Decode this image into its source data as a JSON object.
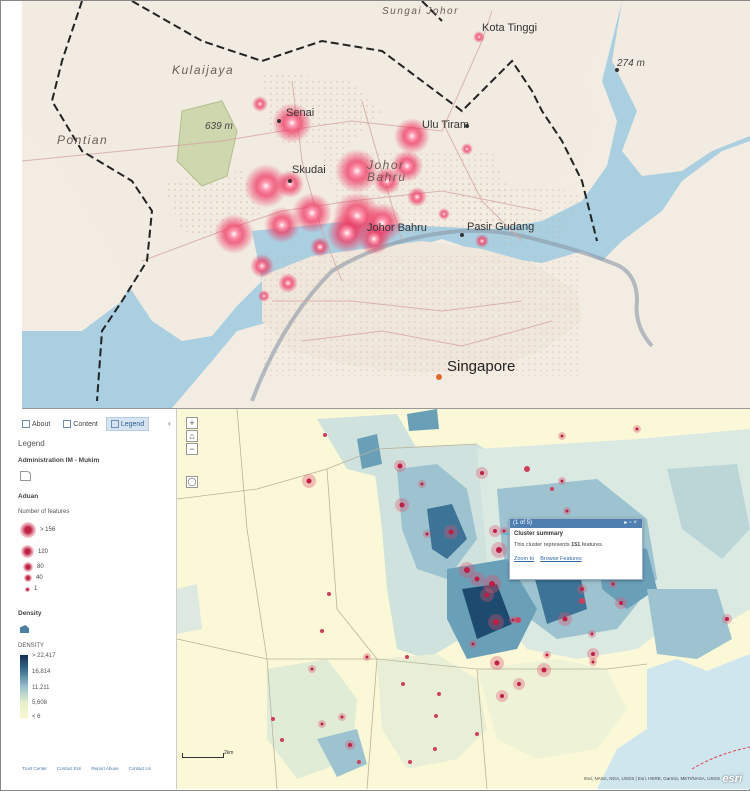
{
  "top_map": {
    "places": {
      "kota_tinggi": "Kota Tinggi",
      "sungai_johor": "Sungai Johor",
      "kulaijaya": "Kulaijaya",
      "senai": "Senai",
      "ulu_tiram": "Ulu Tiram",
      "pontian": "Pontian",
      "skudai": "Skudai",
      "johor_bahru_region": "Johor\nBahru",
      "johor_bahru": "Johor Bahru",
      "pasir_gudang": "Pasir Gudang",
      "singapore": "Singapore"
    },
    "elevations": {
      "e639": "639 m",
      "e274": "274 m"
    }
  },
  "panel": {
    "tabs": [
      {
        "label": "About",
        "icon": "info-icon"
      },
      {
        "label": "Content",
        "icon": "content-icon"
      },
      {
        "label": "Legend",
        "icon": "legend-icon"
      }
    ],
    "legend_title": "Legend",
    "layers": {
      "admin": "Administration IM - Mukim",
      "aduan": "Aduan",
      "number_of_features": "Number of features",
      "density_layer": "Density",
      "density_field": "DENSITY"
    },
    "cluster_sizes": [
      "> 156",
      "120",
      "80",
      "40",
      "1"
    ],
    "density_ramp": [
      "> 22,417",
      "16,814",
      "11,211",
      "5,608",
      "< 6"
    ],
    "footer": [
      "Trust Center",
      "Contact Esri",
      "Report Abuse",
      "Contact Us"
    ]
  },
  "popup": {
    "counter": "(1 of 5)",
    "title": "Cluster summary",
    "body_prefix": "This cluster represents ",
    "count": "151",
    "body_suffix": " features.",
    "zoom_to": "Zoom to",
    "browse": "Browse Features"
  },
  "map_controls": {
    "zoom_in": "+",
    "home": "⌂",
    "zoom_out": "−",
    "locate": "◯"
  },
  "scale_label": "2km",
  "attribution": "Esri, NASA, NGA, USGS | Esri, HERE, Garmin, METI/NASA, USGS",
  "logo_text": "esri",
  "colors": {
    "hotspot": "#e8365d",
    "density_dark": "#0f2e4f",
    "popup_header": "#4f7fb0"
  }
}
